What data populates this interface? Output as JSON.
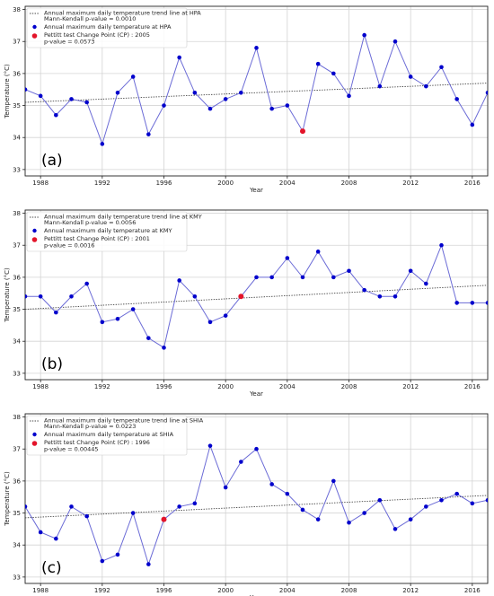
{
  "chart_data": [
    {
      "type": "line",
      "panel_label": "(a)",
      "station": "HPA",
      "xlabel": "Year",
      "ylabel": "Temperature (°C)",
      "xlim": [
        1987,
        2017
      ],
      "ylim": [
        32.8,
        38.1
      ],
      "x_ticks": [
        1988,
        1992,
        1996,
        2000,
        2004,
        2008,
        2012,
        2016
      ],
      "y_ticks": [
        33,
        34,
        35,
        36,
        37,
        38
      ],
      "grid": true,
      "legend_position": "top-left",
      "legend": {
        "trend_label": "Annual maximum daily temperature trend line at HPA",
        "trend_sub": "Mann-Kendall p-value = 0.0010",
        "series_label": "Annual maximum daily temperature at HPA",
        "cp_label": "Pettitt test Change Point (CP) : 2005",
        "cp_sub": "p-value = 0.0573"
      },
      "x": [
        1987,
        1988,
        1989,
        1990,
        1991,
        1992,
        1993,
        1994,
        1995,
        1996,
        1997,
        1998,
        1999,
        2000,
        2001,
        2002,
        2003,
        2004,
        2005,
        2006,
        2007,
        2008,
        2009,
        2010,
        2011,
        2012,
        2013,
        2014,
        2015,
        2016,
        2017
      ],
      "values": [
        35.5,
        35.3,
        34.7,
        35.2,
        35.1,
        33.8,
        35.4,
        35.9,
        34.1,
        35.0,
        36.5,
        35.4,
        34.9,
        35.2,
        35.4,
        36.8,
        34.9,
        35.0,
        34.2,
        36.3,
        36.0,
        35.3,
        37.2,
        35.6,
        37.0,
        35.9,
        35.6,
        36.2,
        35.2,
        34.4,
        35.4
      ],
      "trend": {
        "x": [
          1987,
          2017
        ],
        "y": [
          35.1,
          35.7
        ]
      },
      "change_point": {
        "x": 2005,
        "y": 34.2
      },
      "colors": {
        "series": "#0000cc",
        "line": "#6b6bd6",
        "cp": "#e3142a",
        "trend": "#444444"
      }
    },
    {
      "type": "line",
      "panel_label": "(b)",
      "station": "KMY",
      "xlabel": "Year",
      "ylabel": "Temperature (°C)",
      "xlim": [
        1987,
        2017
      ],
      "ylim": [
        32.8,
        38.1
      ],
      "x_ticks": [
        1988,
        1992,
        1996,
        2000,
        2004,
        2008,
        2012,
        2016
      ],
      "y_ticks": [
        33,
        34,
        35,
        36,
        37,
        38
      ],
      "grid": true,
      "legend_position": "top-left",
      "legend": {
        "trend_label": "Annual maximum daily temperature trend line at KMY",
        "trend_sub": "Mann-Kendall p-value = 0.0056",
        "series_label": "Annual maximum daily temperature at KMY",
        "cp_label": "Pettitt test Change Point (CP) : 2001",
        "cp_sub": "p-value = 0.0016"
      },
      "x": [
        1987,
        1988,
        1989,
        1990,
        1991,
        1992,
        1993,
        1994,
        1995,
        1996,
        1997,
        1998,
        1999,
        2000,
        2001,
        2002,
        2003,
        2004,
        2005,
        2006,
        2007,
        2008,
        2009,
        2010,
        2011,
        2012,
        2013,
        2014,
        2015,
        2016,
        2017
      ],
      "values": [
        35.4,
        35.4,
        34.9,
        35.4,
        35.8,
        34.6,
        34.7,
        35.0,
        34.1,
        33.8,
        35.9,
        35.4,
        34.6,
        34.8,
        35.4,
        36.0,
        36.0,
        36.6,
        36.0,
        36.8,
        36.0,
        36.2,
        35.6,
        35.4,
        35.4,
        36.2,
        35.8,
        37.0,
        35.2,
        35.2,
        35.2
      ],
      "trend": {
        "x": [
          1987,
          2017
        ],
        "y": [
          35.0,
          35.75
        ]
      },
      "change_point": {
        "x": 2001,
        "y": 35.4
      },
      "colors": {
        "series": "#0000cc",
        "line": "#6b6bd6",
        "cp": "#e3142a",
        "trend": "#444444"
      }
    },
    {
      "type": "line",
      "panel_label": "(c)",
      "station": "SHIA",
      "xlabel": "Year",
      "ylabel": "Temperature (°C)",
      "xlim": [
        1987,
        2017
      ],
      "ylim": [
        32.8,
        38.1
      ],
      "x_ticks": [
        1988,
        1992,
        1996,
        2000,
        2004,
        2008,
        2012,
        2016
      ],
      "y_ticks": [
        33,
        34,
        35,
        36,
        37,
        38
      ],
      "grid": true,
      "legend_position": "top-left",
      "legend": {
        "trend_label": "Annual maximum daily temperature trend line at SHIA",
        "trend_sub": "Mann-Kendall p-value = 0.0223",
        "series_label": "Annual maximum daily temperature at SHIA",
        "cp_label": "Pettitt test Change Point (CP) : 1996",
        "cp_sub": "p-value = 0.00445"
      },
      "x": [
        1987,
        1988,
        1989,
        1990,
        1991,
        1992,
        1993,
        1994,
        1995,
        1996,
        1997,
        1998,
        1999,
        2000,
        2001,
        2002,
        2003,
        2004,
        2005,
        2006,
        2007,
        2008,
        2009,
        2010,
        2011,
        2012,
        2013,
        2014,
        2015,
        2016,
        2017
      ],
      "values": [
        35.2,
        34.4,
        34.2,
        35.2,
        34.9,
        33.5,
        33.7,
        35.0,
        33.4,
        34.8,
        35.2,
        35.3,
        37.1,
        35.8,
        36.6,
        37.0,
        35.9,
        35.6,
        35.1,
        34.8,
        36.0,
        34.7,
        35.0,
        35.4,
        34.5,
        34.8,
        35.2,
        35.4,
        35.6,
        35.3,
        35.4
      ],
      "trend": {
        "x": [
          1987,
          2017
        ],
        "y": [
          34.85,
          35.55
        ]
      },
      "change_point": {
        "x": 1996,
        "y": 34.8
      },
      "colors": {
        "series": "#0000cc",
        "line": "#6b6bd6",
        "cp": "#e3142a",
        "trend": "#444444"
      }
    }
  ]
}
